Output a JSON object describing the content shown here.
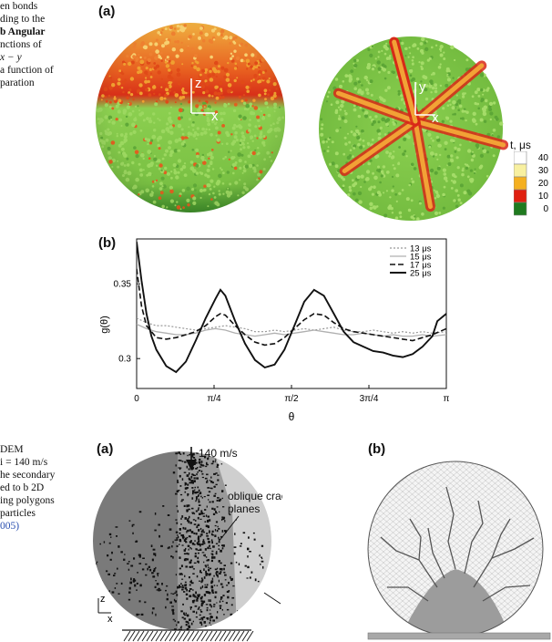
{
  "caption_top": {
    "lines": [
      "en bonds",
      "ding to the",
      "b Angular",
      "nctions of",
      "x − y",
      "a function of",
      "paration"
    ]
  },
  "caption_bottom": {
    "lines": [
      "DEM",
      "i = 140 m/s",
      "he secondary",
      "ed to b 2D",
      "ing polygons",
      "particles",
      "005)"
    ]
  },
  "fig_top": {
    "panel_a_label": "(a)",
    "panel_b_label": "(b)",
    "sphere1_axes": {
      "up": "z",
      "right": "x"
    },
    "sphere2_axes": {
      "up": "y",
      "right": "x"
    },
    "colorbar": {
      "title": "t, μs",
      "ticks": [
        "40",
        "30",
        "20",
        "10",
        "0"
      ],
      "colors": [
        "#ffffff",
        "#f8f0a0",
        "#f5b020",
        "#e02010",
        "#1f7a1f"
      ]
    }
  },
  "chart_data": {
    "type": "line",
    "ylabel": "g(θ)",
    "xlabel": "θ",
    "xticks": [
      "0",
      "π/4",
      "π/2",
      "3π/4",
      "π"
    ],
    "yticks": [
      "0.3",
      "0.35"
    ],
    "xlim": [
      0,
      3.1416
    ],
    "ylim": [
      0.28,
      0.38
    ],
    "legend_position": "top-right",
    "series": [
      {
        "name": "13 μs",
        "style": "dotted",
        "color": "#999999",
        "x": [
          0,
          0.1,
          0.2,
          0.3,
          0.4,
          0.5,
          0.6,
          0.7,
          0.8,
          0.9,
          1.0,
          1.1,
          1.2,
          1.3,
          1.4,
          1.5,
          1.6,
          1.7,
          1.8,
          1.9,
          2.0,
          2.1,
          2.2,
          2.3,
          2.4,
          2.5,
          2.6,
          2.7,
          2.8,
          2.9,
          3.0,
          3.1416
        ],
        "y": [
          0.327,
          0.324,
          0.322,
          0.322,
          0.321,
          0.32,
          0.319,
          0.32,
          0.321,
          0.322,
          0.321,
          0.32,
          0.318,
          0.318,
          0.319,
          0.318,
          0.319,
          0.32,
          0.319,
          0.32,
          0.321,
          0.319,
          0.318,
          0.318,
          0.319,
          0.318,
          0.317,
          0.318,
          0.317,
          0.318,
          0.317,
          0.318
        ]
      },
      {
        "name": "15 μs",
        "style": "solid",
        "color": "#b0b0b0",
        "x": [
          0,
          0.1,
          0.2,
          0.3,
          0.4,
          0.5,
          0.6,
          0.7,
          0.8,
          0.9,
          1.0,
          1.1,
          1.2,
          1.3,
          1.4,
          1.5,
          1.6,
          1.7,
          1.8,
          1.9,
          2.0,
          2.1,
          2.2,
          2.3,
          2.4,
          2.5,
          2.6,
          2.7,
          2.8,
          2.9,
          3.0,
          3.1416
        ],
        "y": [
          0.323,
          0.32,
          0.318,
          0.317,
          0.316,
          0.316,
          0.317,
          0.319,
          0.32,
          0.319,
          0.317,
          0.316,
          0.315,
          0.316,
          0.317,
          0.316,
          0.317,
          0.318,
          0.319,
          0.318,
          0.317,
          0.316,
          0.316,
          0.317,
          0.316,
          0.315,
          0.316,
          0.315,
          0.315,
          0.316,
          0.315,
          0.316
        ]
      },
      {
        "name": "17 μs",
        "style": "dashed",
        "color": "#111111",
        "x": [
          0,
          0.05,
          0.1,
          0.2,
          0.3,
          0.4,
          0.5,
          0.6,
          0.7,
          0.8,
          0.85,
          0.9,
          1.0,
          1.1,
          1.2,
          1.3,
          1.4,
          1.5,
          1.6,
          1.7,
          1.8,
          1.9,
          2.0,
          2.1,
          2.2,
          2.3,
          2.4,
          2.5,
          2.6,
          2.7,
          2.8,
          2.9,
          3.0,
          3.1416
        ],
        "y": [
          0.36,
          0.335,
          0.322,
          0.314,
          0.313,
          0.314,
          0.316,
          0.318,
          0.322,
          0.328,
          0.33,
          0.329,
          0.322,
          0.316,
          0.311,
          0.309,
          0.31,
          0.314,
          0.32,
          0.326,
          0.33,
          0.329,
          0.324,
          0.32,
          0.318,
          0.317,
          0.316,
          0.315,
          0.314,
          0.313,
          0.312,
          0.314,
          0.316,
          0.32
        ]
      },
      {
        "name": "25 μs",
        "style": "solid-bold",
        "color": "#111111",
        "x": [
          0,
          0.05,
          0.1,
          0.15,
          0.2,
          0.3,
          0.4,
          0.5,
          0.6,
          0.7,
          0.8,
          0.85,
          0.9,
          1.0,
          1.1,
          1.2,
          1.3,
          1.4,
          1.5,
          1.6,
          1.7,
          1.8,
          1.9,
          2.0,
          2.1,
          2.2,
          2.3,
          2.4,
          2.5,
          2.6,
          2.7,
          2.8,
          2.9,
          3.0,
          3.05,
          3.1416
        ],
        "y": [
          0.378,
          0.352,
          0.33,
          0.315,
          0.306,
          0.295,
          0.291,
          0.298,
          0.312,
          0.327,
          0.34,
          0.346,
          0.342,
          0.325,
          0.31,
          0.299,
          0.294,
          0.296,
          0.306,
          0.322,
          0.338,
          0.346,
          0.342,
          0.33,
          0.318,
          0.311,
          0.308,
          0.305,
          0.304,
          0.302,
          0.301,
          0.303,
          0.308,
          0.315,
          0.325,
          0.33
        ]
      }
    ]
  },
  "fig_bottom": {
    "panel_a_label": "(a)",
    "panel_b_label": "(b)",
    "velocity_label": "140 m/s",
    "crack_label_line1": "oblique crack",
    "crack_label_line2": "planes",
    "axes": {
      "up": "z",
      "right": "x"
    }
  }
}
